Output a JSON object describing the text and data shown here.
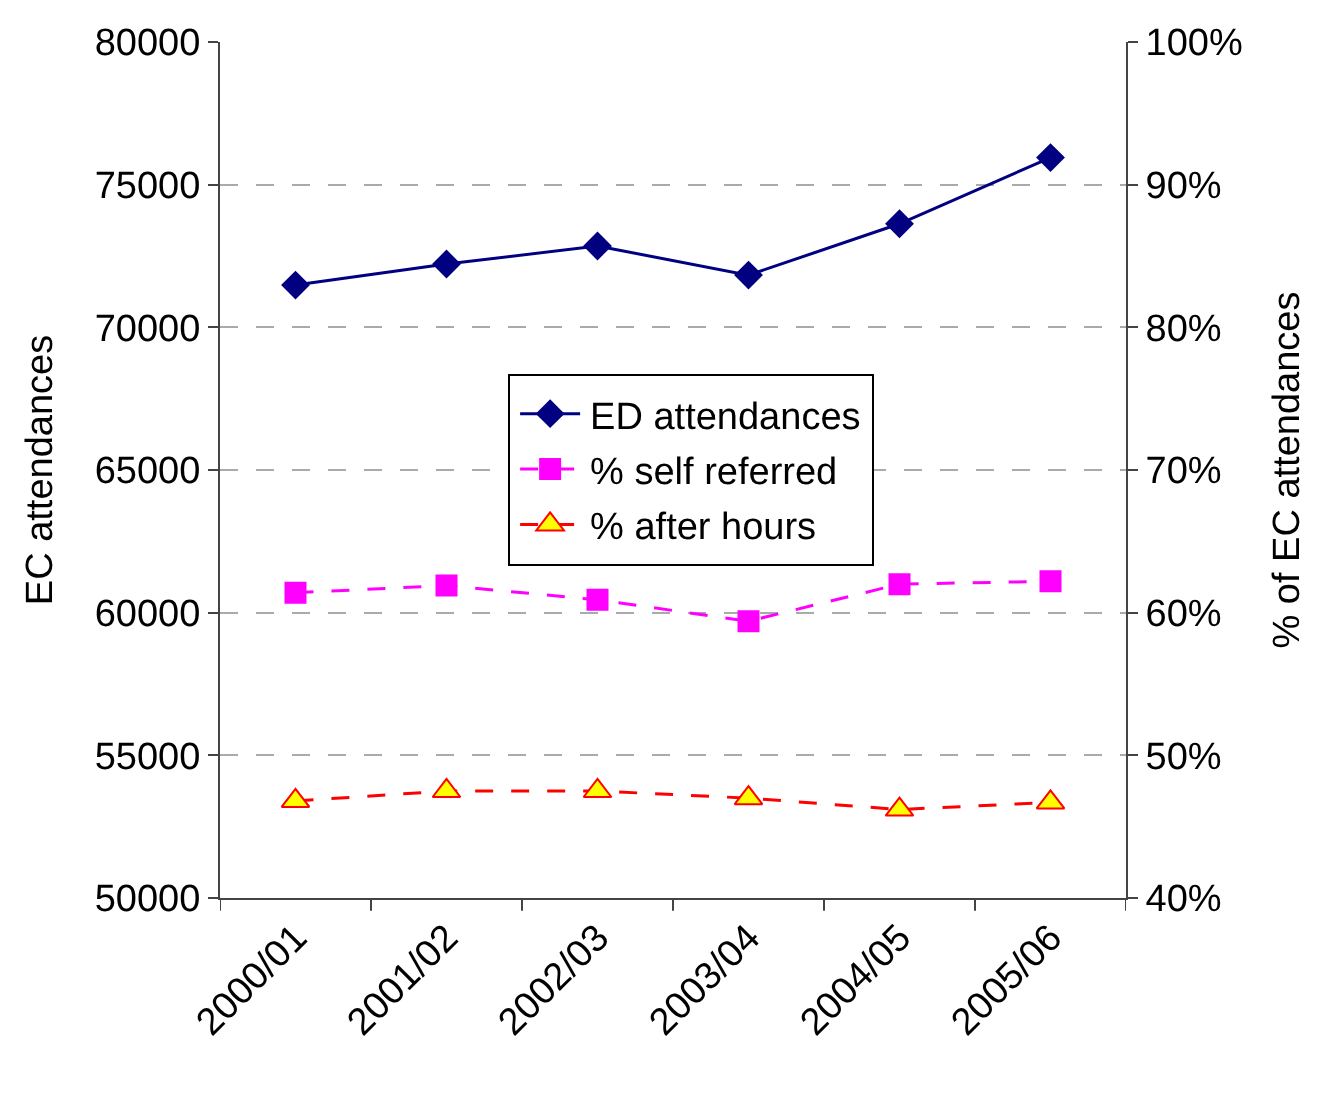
{
  "chart_data": {
    "type": "line",
    "ylabel": "EC attendances",
    "y2label": "% of EC attendances",
    "categories": [
      "2000/01",
      "2001/02",
      "2002/03",
      "2003/04",
      "2004/05",
      "2005/06"
    ],
    "series": [
      {
        "name": "ED attendances",
        "color": "#000080",
        "marker": "diamond",
        "line_style": "solid",
        "values": [
          71480,
          72220,
          72850,
          71830,
          73630,
          75950
        ]
      },
      {
        "name": "% self referred",
        "color": "#ff00ff",
        "marker": "square",
        "line_style": "dashed",
        "axis": "y2",
        "values": [
          61.4,
          61.9,
          60.9,
          59.4,
          62.0,
          62.2
        ]
      },
      {
        "name": "% after hours",
        "color": "#ff0000",
        "marker": "triangle",
        "line_style": "dashed",
        "axis": "y2",
        "values": [
          46.8,
          47.5,
          47.5,
          47.0,
          46.2,
          46.7
        ]
      }
    ],
    "ylim": [
      50000,
      80000
    ],
    "yticks": [
      50000,
      55000,
      60000,
      65000,
      70000,
      75000,
      80000
    ],
    "y2lim": [
      40,
      100
    ],
    "y2ticks": [
      {
        "value": 40,
        "label": "40%"
      },
      {
        "value": 50,
        "label": "50%"
      },
      {
        "value": 60,
        "label": "60%"
      },
      {
        "value": 70,
        "label": "70%"
      },
      {
        "value": 80,
        "label": "80%"
      },
      {
        "value": 90,
        "label": "90%"
      },
      {
        "value": 100,
        "label": "100%"
      }
    ],
    "grid": "y",
    "legend": "center"
  }
}
